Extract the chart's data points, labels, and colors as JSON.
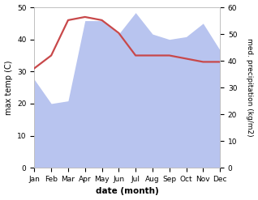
{
  "months": [
    "Jan",
    "Feb",
    "Mar",
    "Apr",
    "May",
    "Jun",
    "Jul",
    "Aug",
    "Sep",
    "Oct",
    "Nov",
    "Dec"
  ],
  "temperature": [
    31,
    35,
    46,
    47,
    46,
    42,
    35,
    35,
    35,
    34,
    33,
    33
  ],
  "precipitation": [
    33,
    24,
    25,
    55,
    55,
    50,
    58,
    50,
    48,
    49,
    54,
    44
  ],
  "temp_color": "#c8484a",
  "precip_fill_color": "#b8c4ef",
  "precip_line_color": "#9090bb",
  "xlabel": "date (month)",
  "ylabel_left": "max temp (C)",
  "ylabel_right": "med. precipitation (kg/m2)",
  "ylim_left": [
    0,
    50
  ],
  "ylim_right": [
    0,
    60
  ],
  "temp_linewidth": 1.6,
  "bg_color": "#ffffff"
}
